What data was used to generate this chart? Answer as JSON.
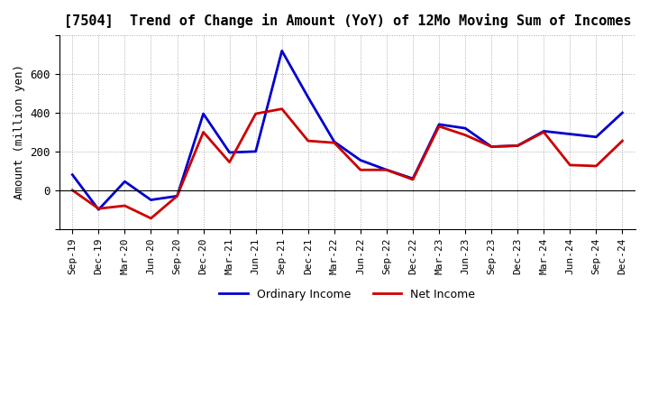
{
  "title": "[7504]  Trend of Change in Amount (YoY) of 12Mo Moving Sum of Incomes",
  "ylabel": "Amount (million yen)",
  "x_labels": [
    "Sep-19",
    "Dec-19",
    "Mar-20",
    "Jun-20",
    "Sep-20",
    "Dec-20",
    "Mar-21",
    "Jun-21",
    "Sep-21",
    "Dec-21",
    "Mar-22",
    "Jun-22",
    "Sep-22",
    "Dec-22",
    "Mar-23",
    "Jun-23",
    "Sep-23",
    "Dec-23",
    "Mar-24",
    "Jun-24",
    "Sep-24",
    "Dec-24"
  ],
  "ordinary_income": [
    80,
    -100,
    45,
    -50,
    -30,
    395,
    195,
    200,
    720,
    480,
    250,
    155,
    105,
    60,
    340,
    320,
    225,
    230,
    305,
    290,
    275,
    400
  ],
  "net_income": [
    0,
    -95,
    -80,
    -145,
    -30,
    300,
    145,
    395,
    420,
    255,
    245,
    105,
    105,
    55,
    330,
    285,
    225,
    230,
    300,
    130,
    125,
    255
  ],
  "ordinary_color": "#0000cc",
  "net_color": "#cc0000",
  "ylim_min": -200,
  "ylim_max": 800,
  "yticks": [
    -200,
    0,
    200,
    400,
    600,
    800
  ],
  "ytick_labels": [
    "",
    "0",
    "200",
    "400",
    "600",
    ""
  ],
  "background_color": "#ffffff",
  "grid_color": "#aaaaaa",
  "line_width": 2.0,
  "legend_ordinary": "Ordinary Income",
  "legend_net": "Net Income"
}
